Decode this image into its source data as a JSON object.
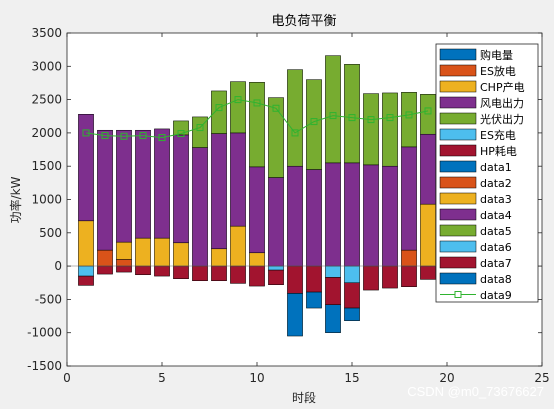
{
  "chart_data": {
    "type": "bar",
    "title": "电负荷平衡",
    "xlabel": "时段",
    "ylabel": "功率/kW",
    "xlim": [
      0,
      25
    ],
    "ylim": [
      -1500,
      3500
    ],
    "xticks": [
      "0",
      "5",
      "10",
      "15",
      "20",
      "25"
    ],
    "yticks": [
      "-1500",
      "-1000",
      "-500",
      "0",
      "500",
      "1000",
      "1500",
      "2000",
      "2500",
      "3000",
      "3500"
    ],
    "legend_position": "top-right",
    "x": [
      1,
      2,
      3,
      4,
      5,
      6,
      7,
      8,
      9,
      10,
      11,
      12,
      13,
      14,
      15,
      16,
      17,
      18,
      19
    ],
    "positive_series": [
      {
        "name": "购电量",
        "color": "#0072BD",
        "values": [
          0,
          0,
          0,
          0,
          0,
          0,
          0,
          0,
          0,
          0,
          0,
          0,
          0,
          0,
          0,
          0,
          0,
          0,
          0
        ]
      },
      {
        "name": "ES放电",
        "color": "#D95319",
        "values": [
          0,
          240,
          100,
          0,
          0,
          0,
          0,
          0,
          0,
          0,
          0,
          0,
          0,
          0,
          0,
          0,
          0,
          240,
          0
        ]
      },
      {
        "name": "CHP产电",
        "color": "#EDB120",
        "values": [
          680,
          0,
          260,
          420,
          420,
          350,
          0,
          260,
          600,
          200,
          0,
          0,
          0,
          0,
          0,
          0,
          0,
          0,
          930
        ]
      },
      {
        "name": "风电出力",
        "color": "#7E2F8E",
        "values": [
          1600,
          1800,
          1680,
          1620,
          1640,
          1620,
          1780,
          1730,
          1400,
          1290,
          1330,
          1500,
          1450,
          1550,
          1550,
          1520,
          1500,
          1550,
          1050
        ]
      },
      {
        "name": "光伏出力",
        "color": "#77AC30",
        "values": [
          0,
          0,
          0,
          0,
          0,
          210,
          460,
          640,
          770,
          1270,
          1200,
          1450,
          1350,
          1610,
          1480,
          1070,
          1100,
          820,
          600
        ]
      }
    ],
    "negative_series": [
      {
        "name": "ES充电",
        "color": "#4DBEEE",
        "values": [
          -150,
          0,
          0,
          0,
          0,
          0,
          0,
          0,
          0,
          0,
          -60,
          0,
          0,
          -170,
          -250,
          0,
          0,
          0,
          0
        ]
      },
      {
        "name": "HP耗电",
        "color": "#A2142F",
        "values": [
          -140,
          -120,
          -90,
          -130,
          -150,
          -190,
          -220,
          -220,
          -260,
          -300,
          -220,
          -410,
          -390,
          -410,
          -380,
          -360,
          -330,
          -310,
          -200
        ]
      },
      {
        "name": "data8",
        "color": "#0072BD",
        "values": [
          0,
          0,
          0,
          0,
          0,
          0,
          0,
          0,
          0,
          0,
          0,
          -640,
          -240,
          -420,
          -190,
          0,
          0,
          0,
          0
        ]
      }
    ],
    "line_series": {
      "name": "data9",
      "color": "#2FB32F",
      "marker": "square",
      "values": [
        2000,
        1960,
        1950,
        1960,
        1930,
        1990,
        2080,
        2380,
        2500,
        2450,
        2370,
        2000,
        2170,
        2260,
        2230,
        2200,
        2230,
        2270,
        2330
      ]
    },
    "legend": [
      "购电量",
      "ES放电",
      "CHP产电",
      "风电出力",
      "光伏出力",
      "ES充电",
      "HP耗电",
      "data1",
      "data2",
      "data3",
      "data4",
      "data5",
      "data6",
      "data7",
      "data8",
      "data9"
    ],
    "legend_colors": [
      "#0072BD",
      "#D95319",
      "#EDB120",
      "#7E2F8E",
      "#77AC30",
      "#4DBEEE",
      "#A2142F",
      "#0072BD",
      "#D95319",
      "#EDB120",
      "#7E2F8E",
      "#77AC30",
      "#4DBEEE",
      "#A2142F",
      "#0072BD",
      "#2FB32F"
    ]
  },
  "watermark": "CSDN @m0_73676627"
}
